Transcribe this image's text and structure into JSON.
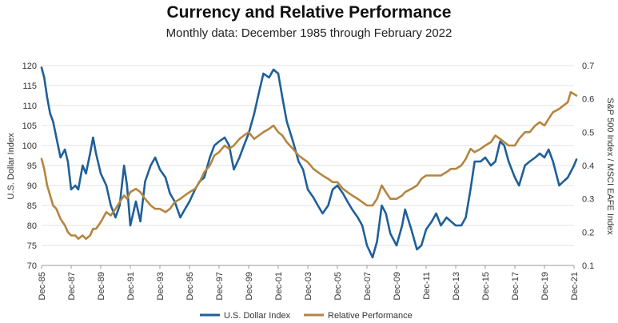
{
  "chart_data": {
    "type": "line",
    "title": "Currency and Relative Performance",
    "subtitle": "Monthly data: December 1985 through February 2022",
    "x_ticks": [
      "Dec-85",
      "Dec-87",
      "Dec-89",
      "Dec-91",
      "Dec-93",
      "Dec-95",
      "Dec-97",
      "Dec-99",
      "Dec-01",
      "Dec-03",
      "Dec-05",
      "Dec-07",
      "Dec-09",
      "Dec-11",
      "Dec-13",
      "Dec-15",
      "Dec-17",
      "Dec-19",
      "Dec-21"
    ],
    "y_left": {
      "label": "U.S. Dollar Index",
      "min": 70,
      "max": 120,
      "ticks": [
        70,
        75,
        80,
        85,
        90,
        95,
        100,
        105,
        110,
        115,
        120
      ]
    },
    "y_right": {
      "label": "S&P 500 Index / MSCI EAFE Index",
      "min": 0.1,
      "max": 0.7,
      "ticks": [
        "0.1",
        "0.2",
        "0.3",
        "0.4",
        "0.5",
        "0.6",
        "0.7"
      ]
    },
    "grid": "horizontal",
    "legend": "bottom-center",
    "series": [
      {
        "name": "U.S. Dollar Index",
        "axis": "left",
        "color": "#1f5f99",
        "points": [
          [
            1985.92,
            119.5
          ],
          [
            1986.1,
            117
          ],
          [
            1986.3,
            112
          ],
          [
            1986.5,
            108
          ],
          [
            1986.7,
            106
          ],
          [
            1986.92,
            102
          ],
          [
            1987.2,
            97
          ],
          [
            1987.5,
            99
          ],
          [
            1987.7,
            96
          ],
          [
            1987.92,
            89
          ],
          [
            1988.2,
            90
          ],
          [
            1988.4,
            89
          ],
          [
            1988.7,
            95
          ],
          [
            1988.92,
            93
          ],
          [
            1989.2,
            98
          ],
          [
            1989.4,
            102
          ],
          [
            1989.6,
            98
          ],
          [
            1989.92,
            93
          ],
          [
            1990.3,
            90
          ],
          [
            1990.6,
            85
          ],
          [
            1990.92,
            82
          ],
          [
            1991.2,
            85
          ],
          [
            1991.5,
            95
          ],
          [
            1991.7,
            90
          ],
          [
            1991.92,
            80
          ],
          [
            1992.3,
            86
          ],
          [
            1992.6,
            81
          ],
          [
            1992.92,
            91
          ],
          [
            1993.3,
            95
          ],
          [
            1993.6,
            97
          ],
          [
            1993.92,
            94
          ],
          [
            1994.3,
            92
          ],
          [
            1994.6,
            88
          ],
          [
            1994.92,
            86
          ],
          [
            1995.3,
            82
          ],
          [
            1995.6,
            84
          ],
          [
            1995.92,
            86
          ],
          [
            1996.3,
            89
          ],
          [
            1996.6,
            91
          ],
          [
            1996.92,
            92
          ],
          [
            1997.3,
            97
          ],
          [
            1997.6,
            100
          ],
          [
            1997.92,
            101
          ],
          [
            1998.3,
            102
          ],
          [
            1998.6,
            100
          ],
          [
            1998.92,
            94
          ],
          [
            1999.3,
            97
          ],
          [
            1999.6,
            100
          ],
          [
            1999.92,
            103
          ],
          [
            2000.3,
            108
          ],
          [
            2000.6,
            113
          ],
          [
            2000.92,
            118
          ],
          [
            2001.3,
            117
          ],
          [
            2001.6,
            119
          ],
          [
            2001.92,
            118
          ],
          [
            2002.2,
            112
          ],
          [
            2002.5,
            106
          ],
          [
            2002.92,
            101
          ],
          [
            2003.3,
            96
          ],
          [
            2003.6,
            94
          ],
          [
            2003.92,
            89
          ],
          [
            2004.3,
            87
          ],
          [
            2004.6,
            85
          ],
          [
            2004.92,
            83
          ],
          [
            2005.3,
            85
          ],
          [
            2005.6,
            89
          ],
          [
            2005.92,
            90
          ],
          [
            2006.3,
            88
          ],
          [
            2006.6,
            86
          ],
          [
            2006.92,
            84
          ],
          [
            2007.3,
            82
          ],
          [
            2007.6,
            80
          ],
          [
            2007.92,
            75
          ],
          [
            2008.3,
            72
          ],
          [
            2008.6,
            76
          ],
          [
            2008.92,
            85
          ],
          [
            2009.2,
            83
          ],
          [
            2009.5,
            78
          ],
          [
            2009.92,
            75
          ],
          [
            2010.3,
            80
          ],
          [
            2010.5,
            84
          ],
          [
            2010.92,
            79
          ],
          [
            2011.3,
            74
          ],
          [
            2011.6,
            75
          ],
          [
            2011.92,
            79
          ],
          [
            2012.3,
            81
          ],
          [
            2012.6,
            83
          ],
          [
            2012.92,
            80
          ],
          [
            2013.3,
            82
          ],
          [
            2013.6,
            81
          ],
          [
            2013.92,
            80
          ],
          [
            2014.3,
            80
          ],
          [
            2014.6,
            82
          ],
          [
            2014.92,
            89
          ],
          [
            2015.2,
            96
          ],
          [
            2015.6,
            96
          ],
          [
            2015.92,
            97
          ],
          [
            2016.3,
            95
          ],
          [
            2016.6,
            96
          ],
          [
            2016.92,
            101
          ],
          [
            2017.2,
            100
          ],
          [
            2017.5,
            96
          ],
          [
            2017.92,
            92
          ],
          [
            2018.2,
            90
          ],
          [
            2018.6,
            95
          ],
          [
            2018.92,
            96
          ],
          [
            2019.3,
            97
          ],
          [
            2019.6,
            98
          ],
          [
            2019.92,
            97
          ],
          [
            2020.2,
            99
          ],
          [
            2020.5,
            96
          ],
          [
            2020.92,
            90
          ],
          [
            2021.2,
            91
          ],
          [
            2021.5,
            92
          ],
          [
            2021.92,
            95
          ],
          [
            2022.08,
            96.5
          ]
        ]
      },
      {
        "name": "Relative Performance",
        "axis": "right",
        "color": "#b4853f",
        "points": [
          [
            1985.92,
            0.42
          ],
          [
            1986.1,
            0.39
          ],
          [
            1986.3,
            0.34
          ],
          [
            1986.5,
            0.31
          ],
          [
            1986.7,
            0.28
          ],
          [
            1986.92,
            0.27
          ],
          [
            1987.2,
            0.24
          ],
          [
            1987.5,
            0.22
          ],
          [
            1987.7,
            0.2
          ],
          [
            1987.92,
            0.19
          ],
          [
            1988.2,
            0.19
          ],
          [
            1988.4,
            0.18
          ],
          [
            1988.7,
            0.19
          ],
          [
            1988.92,
            0.18
          ],
          [
            1989.2,
            0.19
          ],
          [
            1989.4,
            0.21
          ],
          [
            1989.6,
            0.21
          ],
          [
            1989.92,
            0.23
          ],
          [
            1990.3,
            0.26
          ],
          [
            1990.6,
            0.25
          ],
          [
            1990.92,
            0.27
          ],
          [
            1991.2,
            0.29
          ],
          [
            1991.5,
            0.31
          ],
          [
            1991.7,
            0.3
          ],
          [
            1991.92,
            0.32
          ],
          [
            1992.3,
            0.33
          ],
          [
            1992.6,
            0.32
          ],
          [
            1992.92,
            0.3
          ],
          [
            1993.3,
            0.28
          ],
          [
            1993.6,
            0.27
          ],
          [
            1993.92,
            0.27
          ],
          [
            1994.3,
            0.26
          ],
          [
            1994.6,
            0.27
          ],
          [
            1994.92,
            0.29
          ],
          [
            1995.3,
            0.3
          ],
          [
            1995.6,
            0.31
          ],
          [
            1995.92,
            0.32
          ],
          [
            1996.3,
            0.33
          ],
          [
            1996.6,
            0.35
          ],
          [
            1996.92,
            0.38
          ],
          [
            1997.3,
            0.4
          ],
          [
            1997.6,
            0.43
          ],
          [
            1997.92,
            0.44
          ],
          [
            1998.3,
            0.46
          ],
          [
            1998.6,
            0.45
          ],
          [
            1998.92,
            0.46
          ],
          [
            1999.3,
            0.48
          ],
          [
            1999.6,
            0.49
          ],
          [
            1999.92,
            0.5
          ],
          [
            2000.3,
            0.48
          ],
          [
            2000.6,
            0.49
          ],
          [
            2000.92,
            0.5
          ],
          [
            2001.3,
            0.51
          ],
          [
            2001.6,
            0.52
          ],
          [
            2001.92,
            0.5
          ],
          [
            2002.2,
            0.49
          ],
          [
            2002.5,
            0.47
          ],
          [
            2002.92,
            0.45
          ],
          [
            2003.3,
            0.43
          ],
          [
            2003.6,
            0.42
          ],
          [
            2003.92,
            0.41
          ],
          [
            2004.3,
            0.39
          ],
          [
            2004.6,
            0.38
          ],
          [
            2004.92,
            0.37
          ],
          [
            2005.3,
            0.36
          ],
          [
            2005.6,
            0.35
          ],
          [
            2005.92,
            0.35
          ],
          [
            2006.3,
            0.33
          ],
          [
            2006.6,
            0.32
          ],
          [
            2006.92,
            0.31
          ],
          [
            2007.3,
            0.3
          ],
          [
            2007.6,
            0.29
          ],
          [
            2007.92,
            0.28
          ],
          [
            2008.3,
            0.28
          ],
          [
            2008.6,
            0.3
          ],
          [
            2008.92,
            0.34
          ],
          [
            2009.2,
            0.32
          ],
          [
            2009.5,
            0.3
          ],
          [
            2009.92,
            0.3
          ],
          [
            2010.3,
            0.31
          ],
          [
            2010.5,
            0.32
          ],
          [
            2010.92,
            0.33
          ],
          [
            2011.3,
            0.34
          ],
          [
            2011.6,
            0.36
          ],
          [
            2011.92,
            0.37
          ],
          [
            2012.3,
            0.37
          ],
          [
            2012.6,
            0.37
          ],
          [
            2012.92,
            0.37
          ],
          [
            2013.3,
            0.38
          ],
          [
            2013.6,
            0.39
          ],
          [
            2013.92,
            0.39
          ],
          [
            2014.3,
            0.4
          ],
          [
            2014.6,
            0.42
          ],
          [
            2014.92,
            0.45
          ],
          [
            2015.2,
            0.44
          ],
          [
            2015.6,
            0.45
          ],
          [
            2015.92,
            0.46
          ],
          [
            2016.3,
            0.47
          ],
          [
            2016.6,
            0.49
          ],
          [
            2016.92,
            0.48
          ],
          [
            2017.2,
            0.47
          ],
          [
            2017.5,
            0.46
          ],
          [
            2017.92,
            0.46
          ],
          [
            2018.2,
            0.48
          ],
          [
            2018.6,
            0.5
          ],
          [
            2018.92,
            0.5
          ],
          [
            2019.3,
            0.52
          ],
          [
            2019.6,
            0.53
          ],
          [
            2019.92,
            0.52
          ],
          [
            2020.2,
            0.54
          ],
          [
            2020.5,
            0.56
          ],
          [
            2020.92,
            0.57
          ],
          [
            2021.2,
            0.58
          ],
          [
            2021.5,
            0.59
          ],
          [
            2021.7,
            0.62
          ],
          [
            2022.08,
            0.61
          ]
        ]
      }
    ]
  }
}
